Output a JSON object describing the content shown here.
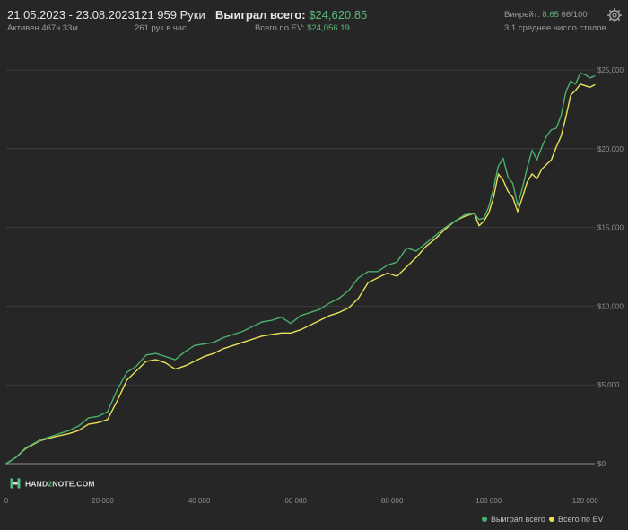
{
  "header": {
    "date_range": "21.05.2023 - 23.08.2023",
    "active_time": "Активен 467ч 33м",
    "hands": "121 959 Руки",
    "hands_per_hour": "261 рук в час",
    "won_label": "Выиграл всего:",
    "won_value": "$24,620.85",
    "ev_label": "Всего по EV:",
    "ev_value": "$24,056.19",
    "winrate_label": "Винрейт:",
    "winrate_value": "8.65",
    "winrate_rest": "66/100",
    "avg_tables": "3.1 среднее число столов"
  },
  "logo": {
    "prefix": "HAND",
    "digit": "2",
    "suffix": "NOTE.COM"
  },
  "colors": {
    "background": "#262626",
    "grid": "#3d3d3d",
    "zero_line": "#8a8a8a",
    "won_series": "#4caf6e",
    "ev_series": "#e8e05a",
    "green_text": "#5cba7a"
  },
  "chart_data": {
    "type": "line",
    "xlim": [
      0,
      122000
    ],
    "ylim": [
      0,
      25000
    ],
    "x_ticks": [
      "0",
      "20 000",
      "40 000",
      "60 000",
      "80 000",
      "100 000",
      "120 000"
    ],
    "x_tick_values": [
      0,
      20000,
      40000,
      60000,
      80000,
      100000,
      120000
    ],
    "y_ticks": [
      "$0",
      "$5,000",
      "$10,000",
      "$15,000",
      "$20,000",
      "$25,000"
    ],
    "y_tick_values": [
      0,
      5000,
      10000,
      15000,
      20000,
      25000
    ],
    "grid": true,
    "legend_position": "bottom-right",
    "series": [
      {
        "name": "Выиграл всего",
        "x": [
          0,
          2000,
          4000,
          7000,
          10000,
          13000,
          15000,
          17000,
          19000,
          21000,
          23000,
          25000,
          27000,
          29000,
          31000,
          33000,
          35000,
          37000,
          39000,
          41000,
          43000,
          45000,
          47000,
          49000,
          51000,
          53000,
          55000,
          57000,
          59000,
          61000,
          63000,
          65000,
          67000,
          69000,
          71000,
          73000,
          75000,
          77000,
          79000,
          81000,
          83000,
          85000,
          87000,
          89000,
          91000,
          93000,
          95000,
          97000,
          98000,
          99000,
          100000,
          101000,
          102000,
          103000,
          104000,
          105000,
          106000,
          107000,
          108000,
          109000,
          110000,
          111000,
          112000,
          113000,
          114000,
          115000,
          116000,
          117000,
          118000,
          119000,
          120000,
          121000,
          121959
        ],
        "values": [
          0,
          400,
          1000,
          1500,
          1800,
          2100,
          2400,
          2900,
          3000,
          3300,
          4700,
          5800,
          6200,
          6900,
          7000,
          6800,
          6600,
          7100,
          7500,
          7600,
          7700,
          8000,
          8200,
          8400,
          8700,
          9000,
          9100,
          9300,
          8900,
          9400,
          9600,
          9800,
          10200,
          10500,
          11000,
          11800,
          12200,
          12200,
          12600,
          12800,
          13700,
          13500,
          14000,
          14500,
          15000,
          15400,
          15800,
          15900,
          15500,
          15600,
          16300,
          17500,
          18900,
          19400,
          18200,
          17800,
          16400,
          17500,
          18800,
          19900,
          19300,
          20100,
          20800,
          21200,
          21300,
          22100,
          23600,
          24300,
          24100,
          24800,
          24700,
          24500,
          24620.85
        ]
      },
      {
        "name": "Всего по EV",
        "x": [
          0,
          2000,
          4000,
          7000,
          10000,
          13000,
          15000,
          17000,
          19000,
          21000,
          23000,
          25000,
          27000,
          29000,
          31000,
          33000,
          35000,
          37000,
          39000,
          41000,
          43000,
          45000,
          47000,
          49000,
          51000,
          53000,
          55000,
          57000,
          59000,
          61000,
          63000,
          65000,
          67000,
          69000,
          71000,
          73000,
          75000,
          77000,
          79000,
          81000,
          83000,
          85000,
          87000,
          89000,
          91000,
          93000,
          95000,
          97000,
          98000,
          99000,
          100000,
          101000,
          102000,
          103000,
          104000,
          105000,
          106000,
          107000,
          108000,
          109000,
          110000,
          111000,
          112000,
          113000,
          114000,
          115000,
          116000,
          117000,
          118000,
          119000,
          120000,
          121000,
          121959
        ],
        "values": [
          0,
          400,
          950,
          1450,
          1700,
          1900,
          2100,
          2500,
          2600,
          2800,
          4000,
          5300,
          5900,
          6500,
          6600,
          6400,
          6000,
          6200,
          6500,
          6800,
          7000,
          7300,
          7500,
          7700,
          7900,
          8100,
          8200,
          8300,
          8300,
          8500,
          8800,
          9100,
          9400,
          9600,
          9900,
          10500,
          11500,
          11800,
          12100,
          11900,
          12500,
          13100,
          13800,
          14300,
          14900,
          15400,
          15700,
          15900,
          15100,
          15400,
          15900,
          16900,
          18400,
          18000,
          17300,
          16900,
          16000,
          16900,
          17900,
          18400,
          18100,
          18700,
          19000,
          19300,
          20100,
          20800,
          22000,
          23400,
          23700,
          24100,
          24000,
          23900,
          24056.19
        ]
      }
    ]
  }
}
